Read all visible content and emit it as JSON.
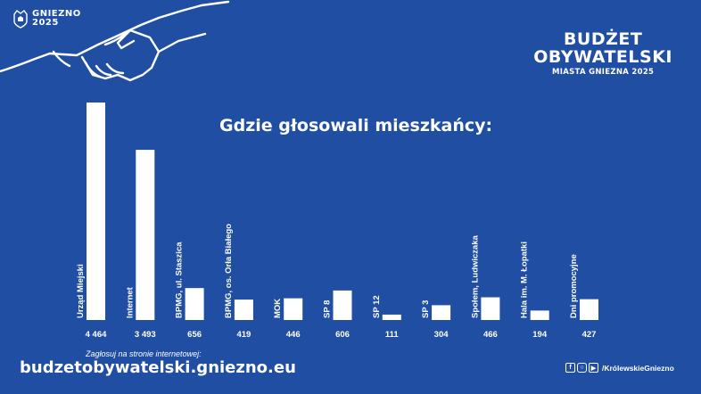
{
  "logo": {
    "line1": "GNIEZNO",
    "line2": "2025"
  },
  "brand": {
    "line1": "BUDŻET",
    "line2": "OBYWATELSKI",
    "sub": "MIASTA GNIEZNA 2025"
  },
  "chart_data": {
    "type": "bar",
    "title": "Gdzie głosowali mieszkańcy:",
    "categories": [
      "Urząd Miejski",
      "Internet",
      "BPMG, ul. Staszica",
      "BPMG, os. Orła Białego",
      "MOK",
      "SP 8",
      "SP 12",
      "SP 3",
      "Społem, Ludwiczaka",
      "Hala im. M. Łopatki",
      "Dni promocyjne"
    ],
    "value_labels": [
      "4 464",
      "3 493",
      "656",
      "419",
      "446",
      "606",
      "111",
      "304",
      "466",
      "194",
      "427"
    ],
    "values": [
      4464,
      3493,
      656,
      419,
      446,
      606,
      111,
      304,
      466,
      194,
      427
    ],
    "ylim": [
      0,
      4464
    ],
    "grid": false,
    "legend": "none",
    "bar_color": "#ffffff"
  },
  "footer": {
    "promo": "Zagłosuj na stronie internetowej:",
    "url": "budzetobywatelski.gniezno.eu",
    "handle": "/KrólewskieGniezno",
    "icons": [
      "facebook-icon",
      "instagram-icon",
      "youtube-icon"
    ]
  },
  "colors": {
    "background": "#1f4ea3",
    "foreground": "#ffffff"
  }
}
